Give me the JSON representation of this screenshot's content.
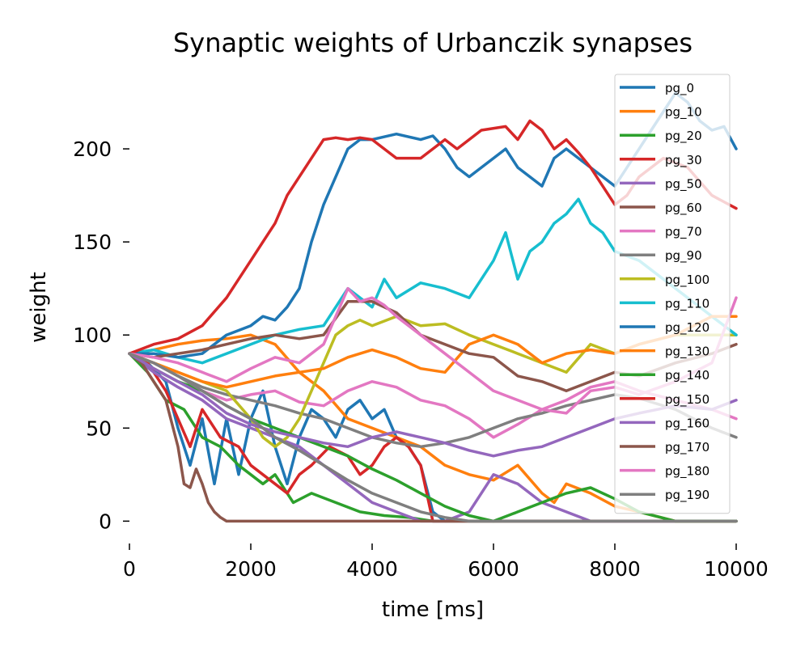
{
  "chart_data": {
    "type": "line",
    "title": "Synaptic weights of Urbanczik synapses",
    "xlabel": "time [ms]",
    "ylabel": "weight",
    "xlim": [
      0,
      10000
    ],
    "ylim": [
      -12,
      240
    ],
    "xticks": [
      0,
      2000,
      4000,
      6000,
      8000,
      10000
    ],
    "yticks": [
      0,
      50,
      100,
      150,
      200
    ],
    "grid": false,
    "legend_position": "top-right",
    "series": [
      {
        "name": "pg_0",
        "color": "#1f77b4",
        "x": [
          0,
          300,
          600,
          800,
          1000,
          1200,
          1400,
          1600,
          1800,
          2000,
          2200,
          2400,
          2600,
          2800,
          3000,
          3200,
          3400,
          3600,
          3800,
          4000,
          4200,
          4400,
          4600,
          4800,
          5000,
          5200,
          5400,
          5600,
          6000,
          7000,
          8000,
          9000,
          10000
        ],
        "y": [
          90,
          85,
          75,
          50,
          30,
          55,
          20,
          55,
          25,
          55,
          70,
          40,
          20,
          45,
          60,
          55,
          45,
          60,
          65,
          55,
          60,
          45,
          40,
          30,
          5,
          0,
          0,
          0,
          0,
          0,
          0,
          0,
          0
        ]
      },
      {
        "name": "pg_10",
        "color": "#ff7f0e",
        "x": [
          0,
          400,
          800,
          1200,
          1600,
          2000,
          2400,
          2800,
          3200,
          3600,
          4000,
          4400,
          4800,
          5200,
          5600,
          6000,
          6400,
          6800,
          7000,
          7200,
          7600,
          8000,
          8400,
          9000,
          9600,
          10000
        ],
        "y": [
          90,
          92,
          95,
          97,
          98,
          100,
          95,
          80,
          70,
          55,
          50,
          45,
          40,
          30,
          25,
          22,
          30,
          15,
          10,
          20,
          15,
          8,
          5,
          0,
          0,
          0
        ]
      },
      {
        "name": "pg_20",
        "color": "#2ca02c",
        "x": [
          0,
          300,
          600,
          900,
          1200,
          1500,
          1800,
          2000,
          2200,
          2400,
          2700,
          3000,
          3400,
          3800,
          4200,
          4600,
          5000,
          5400,
          6000,
          7000,
          8000,
          9000,
          10000
        ],
        "y": [
          90,
          80,
          65,
          60,
          45,
          40,
          30,
          25,
          20,
          25,
          10,
          15,
          10,
          5,
          3,
          2,
          0,
          0,
          0,
          0,
          0,
          0,
          0
        ]
      },
      {
        "name": "pg_30",
        "color": "#d62728",
        "x": [
          0,
          300,
          600,
          800,
          1000,
          1200,
          1500,
          1800,
          2000,
          2200,
          2400,
          2600,
          2800,
          3000,
          3300,
          3600,
          3800,
          4000,
          4200,
          4400,
          4600,
          4800,
          5000,
          5400,
          6000,
          7000,
          8000,
          9000,
          10000
        ],
        "y": [
          90,
          85,
          70,
          55,
          40,
          60,
          45,
          40,
          30,
          25,
          20,
          15,
          25,
          30,
          40,
          35,
          25,
          30,
          40,
          45,
          40,
          30,
          0,
          0,
          0,
          0,
          0,
          0,
          0
        ]
      },
      {
        "name": "pg_50",
        "color": "#9467bd",
        "x": [
          0,
          400,
          800,
          1200,
          1600,
          2000,
          2400,
          2800,
          3200,
          3600,
          4000,
          4400,
          4800,
          5200,
          5600,
          6000,
          6400,
          6800,
          7200,
          7600,
          8000,
          8400,
          9000,
          9600,
          10000
        ],
        "y": [
          90,
          80,
          72,
          65,
          55,
          50,
          45,
          40,
          30,
          20,
          10,
          5,
          0,
          0,
          5,
          25,
          20,
          10,
          5,
          0,
          0,
          0,
          0,
          0,
          0
        ]
      },
      {
        "name": "pg_60",
        "color": "#8c564b",
        "x": [
          0,
          200,
          400,
          600,
          800,
          900,
          1000,
          1100,
          1200,
          1300,
          1400,
          1500,
          1600,
          2000,
          3000,
          4000,
          5000,
          6000,
          7000,
          8000,
          9000,
          10000
        ],
        "y": [
          90,
          85,
          75,
          65,
          40,
          20,
          18,
          28,
          20,
          10,
          5,
          2,
          0,
          0,
          0,
          0,
          0,
          0,
          0,
          0,
          0,
          0
        ]
      },
      {
        "name": "pg_70",
        "color": "#e377c2",
        "x": [
          0,
          400,
          800,
          1200,
          1600,
          2000,
          2400,
          2800,
          3200,
          3600,
          4000,
          4400,
          4800,
          5200,
          5600,
          6000,
          6400,
          6800,
          7200,
          7600,
          8000,
          8400,
          9000,
          9600,
          10000
        ],
        "y": [
          90,
          85,
          78,
          70,
          65,
          68,
          70,
          64,
          62,
          70,
          75,
          72,
          65,
          62,
          55,
          45,
          52,
          60,
          65,
          72,
          75,
          70,
          65,
          60,
          55
        ]
      },
      {
        "name": "pg_90",
        "color": "#7f7f7f",
        "x": [
          0,
          400,
          800,
          1200,
          1600,
          2000,
          2400,
          2800,
          3200,
          3600,
          4000,
          4400,
          4800,
          5200,
          5600,
          6000,
          6400,
          6800,
          7200,
          7600,
          8000,
          8400,
          9000,
          9600,
          10000
        ],
        "y": [
          90,
          85,
          78,
          72,
          68,
          65,
          62,
          58,
          55,
          50,
          45,
          42,
          40,
          42,
          45,
          50,
          55,
          58,
          62,
          65,
          68,
          66,
          60,
          50,
          45
        ]
      },
      {
        "name": "pg_100",
        "color": "#bcbd22",
        "x": [
          0,
          400,
          800,
          1200,
          1600,
          2000,
          2200,
          2400,
          2600,
          2800,
          3000,
          3200,
          3400,
          3600,
          3800,
          4000,
          4400,
          4800,
          5200,
          5600,
          6000,
          6400,
          6800,
          7200,
          7600,
          8000,
          8400,
          9000,
          9600,
          10000
        ],
        "y": [
          90,
          85,
          80,
          75,
          70,
          55,
          45,
          40,
          45,
          55,
          70,
          85,
          100,
          105,
          108,
          105,
          110,
          105,
          106,
          100,
          95,
          90,
          85,
          80,
          95,
          90,
          95,
          100,
          100,
          100
        ]
      },
      {
        "name": "pg_110",
        "color": "#17becf",
        "x": [
          0,
          400,
          800,
          1200,
          1600,
          2000,
          2400,
          2800,
          3200,
          3400,
          3600,
          3800,
          4000,
          4200,
          4400,
          4800,
          5200,
          5600,
          6000,
          6200,
          6400,
          6600,
          6800,
          7000,
          7200,
          7400,
          7600,
          7800,
          8000,
          8400,
          8800,
          9200,
          9600,
          10000
        ],
        "y": [
          90,
          92,
          88,
          85,
          90,
          95,
          100,
          103,
          105,
          115,
          125,
          120,
          115,
          130,
          120,
          128,
          125,
          120,
          140,
          155,
          130,
          145,
          150,
          160,
          165,
          173,
          160,
          155,
          145,
          140,
          130,
          120,
          110,
          100
        ]
      },
      {
        "name": "pg_120",
        "color": "#1f77b4",
        "x": [
          0,
          400,
          800,
          1200,
          1600,
          2000,
          2200,
          2400,
          2600,
          2800,
          3000,
          3200,
          3400,
          3600,
          3800,
          4000,
          4400,
          4800,
          5000,
          5200,
          5400,
          5600,
          6000,
          6200,
          6400,
          6600,
          6800,
          7000,
          7200,
          7400,
          7600,
          7800,
          8000,
          8200,
          8400,
          8600,
          8800,
          9000,
          9200,
          9400,
          9600,
          9800,
          10000
        ],
        "y": [
          90,
          90,
          88,
          90,
          100,
          105,
          110,
          108,
          115,
          125,
          150,
          170,
          185,
          200,
          205,
          205,
          208,
          205,
          207,
          200,
          190,
          185,
          195,
          200,
          190,
          185,
          180,
          195,
          200,
          195,
          190,
          185,
          180,
          190,
          200,
          210,
          220,
          230,
          225,
          215,
          210,
          212,
          200
        ]
      },
      {
        "name": "pg_130",
        "color": "#ff7f0e",
        "x": [
          0,
          400,
          800,
          1200,
          1600,
          2000,
          2400,
          2800,
          3200,
          3600,
          4000,
          4400,
          4800,
          5200,
          5600,
          6000,
          6400,
          6800,
          7200,
          7600,
          8000,
          8400,
          9000,
          9600,
          10000
        ],
        "y": [
          90,
          85,
          80,
          75,
          72,
          75,
          78,
          80,
          82,
          88,
          92,
          88,
          82,
          80,
          95,
          100,
          95,
          85,
          90,
          92,
          90,
          95,
          100,
          110,
          110
        ]
      },
      {
        "name": "pg_140",
        "color": "#2ca02c",
        "x": [
          0,
          400,
          800,
          1200,
          1600,
          2000,
          2400,
          2800,
          3200,
          3600,
          4000,
          4400,
          4800,
          5200,
          5600,
          6000,
          6400,
          6800,
          7200,
          7600,
          8000,
          8400,
          9000,
          9600,
          10000
        ],
        "y": [
          90,
          82,
          75,
          70,
          62,
          55,
          50,
          45,
          40,
          35,
          28,
          22,
          15,
          8,
          3,
          0,
          5,
          10,
          15,
          18,
          12,
          5,
          0,
          0,
          0
        ]
      },
      {
        "name": "pg_150",
        "color": "#d62728",
        "x": [
          0,
          400,
          800,
          1200,
          1600,
          1800,
          2000,
          2200,
          2400,
          2600,
          2800,
          3000,
          3200,
          3400,
          3600,
          3800,
          4000,
          4200,
          4400,
          4800,
          5000,
          5200,
          5400,
          5800,
          6200,
          6400,
          6600,
          6800,
          7000,
          7200,
          7400,
          7600,
          7800,
          8000,
          8200,
          8400,
          8800,
          9200,
          9600,
          10000
        ],
        "y": [
          90,
          95,
          98,
          105,
          120,
          130,
          140,
          150,
          160,
          175,
          185,
          195,
          205,
          206,
          205,
          206,
          205,
          200,
          195,
          195,
          200,
          205,
          200,
          210,
          212,
          205,
          215,
          210,
          200,
          205,
          198,
          190,
          180,
          170,
          175,
          185,
          195,
          190,
          175,
          168
        ]
      },
      {
        "name": "pg_160",
        "color": "#9467bd",
        "x": [
          0,
          400,
          800,
          1200,
          1600,
          2000,
          2400,
          2800,
          3200,
          3600,
          4000,
          4400,
          4800,
          5200,
          5600,
          6000,
          6400,
          6800,
          7200,
          7600,
          8000,
          8400,
          9000,
          9600,
          10000
        ],
        "y": [
          90,
          82,
          75,
          68,
          58,
          52,
          48,
          45,
          42,
          40,
          45,
          48,
          45,
          42,
          38,
          35,
          38,
          40,
          45,
          50,
          55,
          58,
          62,
          60,
          65
        ]
      },
      {
        "name": "pg_170",
        "color": "#8c564b",
        "x": [
          0,
          400,
          800,
          1200,
          1600,
          2000,
          2400,
          2800,
          3200,
          3600,
          4000,
          4400,
          4800,
          5200,
          5600,
          6000,
          6400,
          6800,
          7200,
          7600,
          8000,
          8400,
          9000,
          9600,
          10000
        ],
        "y": [
          90,
          88,
          90,
          92,
          95,
          98,
          100,
          98,
          100,
          118,
          118,
          112,
          100,
          95,
          90,
          88,
          78,
          75,
          70,
          75,
          80,
          78,
          85,
          90,
          95
        ]
      },
      {
        "name": "pg_180",
        "color": "#e377c2",
        "x": [
          0,
          400,
          800,
          1200,
          1600,
          2000,
          2400,
          2800,
          3200,
          3400,
          3600,
          3800,
          4000,
          4200,
          4400,
          4800,
          5200,
          5600,
          6000,
          6400,
          6800,
          7200,
          7600,
          8000,
          8400,
          9000,
          9600,
          10000
        ],
        "y": [
          90,
          88,
          85,
          80,
          75,
          82,
          88,
          85,
          95,
          110,
          125,
          118,
          120,
          116,
          110,
          100,
          90,
          80,
          70,
          65,
          60,
          58,
          70,
          72,
          68,
          75,
          85,
          120
        ]
      },
      {
        "name": "pg_190",
        "color": "#7f7f7f",
        "x": [
          0,
          400,
          800,
          1200,
          1600,
          2000,
          2400,
          2800,
          3200,
          3600,
          4000,
          4400,
          4800,
          5200,
          5600,
          6000,
          6400,
          6800,
          7200,
          7600,
          8000,
          8400,
          9000,
          9600,
          10000
        ],
        "y": [
          90,
          85,
          78,
          70,
          62,
          55,
          45,
          38,
          30,
          22,
          15,
          10,
          5,
          2,
          0,
          0,
          0,
          0,
          0,
          0,
          0,
          0,
          0,
          0,
          0
        ]
      }
    ]
  }
}
